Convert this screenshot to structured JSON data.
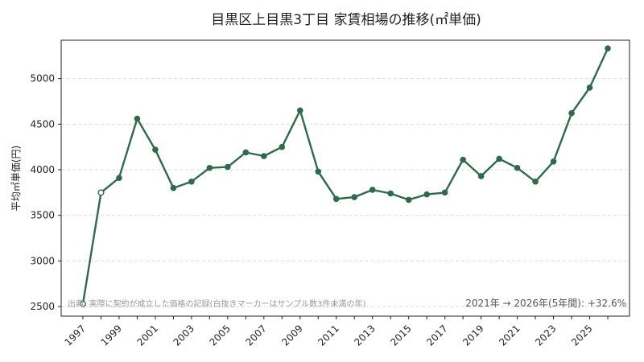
{
  "chart_data": {
    "type": "line",
    "title": "目黒区上目黒3丁目 家賃相場の推移(㎡単価)",
    "xlabel": "",
    "ylabel": "平均㎡単価(円)",
    "x": [
      1997,
      1998,
      1999,
      2000,
      2001,
      2002,
      2003,
      2004,
      2005,
      2006,
      2007,
      2008,
      2009,
      2010,
      2011,
      2012,
      2013,
      2014,
      2015,
      2016,
      2017,
      2018,
      2019,
      2020,
      2021,
      2022,
      2023,
      2024,
      2025,
      2026
    ],
    "series": [
      {
        "values": [
          2530,
          3750,
          3910,
          4560,
          4220,
          3800,
          3870,
          4020,
          4030,
          4190,
          4150,
          4250,
          4650,
          3980,
          3680,
          3700,
          3780,
          3740,
          3670,
          3730,
          3750,
          4110,
          3930,
          4120,
          4020,
          3870,
          4090,
          4620,
          4900,
          5330
        ],
        "hollow_points": [
          1997,
          1998
        ],
        "color": "#2e6b4a"
      }
    ],
    "x_tick_labels": [
      "1997",
      "1999",
      "2001",
      "2003",
      "2005",
      "2007",
      "2009",
      "2011",
      "2013",
      "2015",
      "2017",
      "2019",
      "2021",
      "2023",
      "2025"
    ],
    "y_ticks": [
      2500,
      3000,
      3500,
      4000,
      4500,
      5000
    ],
    "xlim": [
      1995.8,
      2027.2
    ],
    "ylim": [
      2395,
      5420
    ],
    "grid": "horizontal dashed",
    "source_note": "出典: 実際に契約が成立した価格の記録(白抜きマーカーはサンプル数3件未満の年)",
    "change_note": "2021年 → 2026年(5年間): +32.6%"
  }
}
